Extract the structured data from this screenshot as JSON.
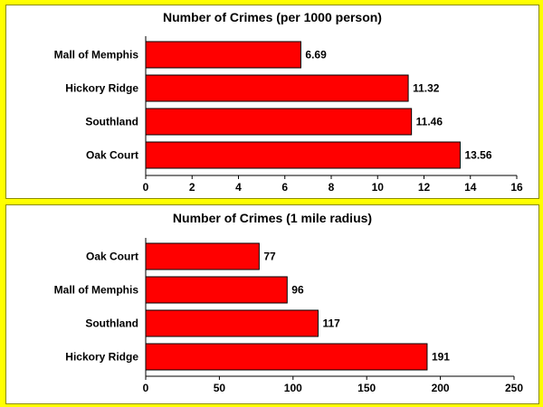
{
  "chart_data": [
    {
      "type": "bar",
      "orientation": "horizontal",
      "title": "Number of Crimes (per 1000 person)",
      "categories": [
        "Mall of Memphis",
        "Hickory Ridge",
        "Southland",
        "Oak Court"
      ],
      "values": [
        6.69,
        11.32,
        11.46,
        13.56
      ],
      "value_labels": [
        "6.69",
        "11.32",
        "11.46",
        "13.56"
      ],
      "xlim": [
        0,
        16
      ],
      "xticks": [
        0,
        2,
        4,
        6,
        8,
        10,
        12,
        14,
        16
      ],
      "xlabel": "",
      "ylabel": "",
      "bar_color": "#ff0000",
      "grid": false,
      "legend": "none"
    },
    {
      "type": "bar",
      "orientation": "horizontal",
      "title": "Number of Crimes (1 mile radius)",
      "categories": [
        "Oak Court",
        "Mall of Memphis",
        "Southland",
        "Hickory Ridge"
      ],
      "values": [
        77,
        96,
        117,
        191
      ],
      "value_labels": [
        "77",
        "96",
        "117",
        "191"
      ],
      "xlim": [
        0,
        250
      ],
      "xticks": [
        0,
        50,
        100,
        150,
        200,
        250
      ],
      "xlabel": "",
      "ylabel": "",
      "bar_color": "#ff0000",
      "grid": false,
      "legend": "none"
    }
  ]
}
